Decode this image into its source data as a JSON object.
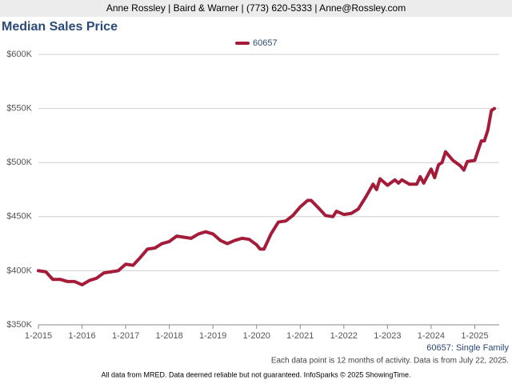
{
  "header": "Anne Rossley | Baird & Warner | (773) 620-5333 | Anne@Rossley.com",
  "chart_data": {
    "type": "line",
    "title": "Median Sales Price",
    "x": [
      2015.0,
      2015.17,
      2015.33,
      2015.5,
      2015.67,
      2015.83,
      2016.0,
      2016.17,
      2016.33,
      2016.5,
      2016.67,
      2016.83,
      2017.0,
      2017.17,
      2017.33,
      2017.5,
      2017.67,
      2017.83,
      2018.0,
      2018.17,
      2018.33,
      2018.5,
      2018.67,
      2018.83,
      2019.0,
      2019.17,
      2019.33,
      2019.5,
      2019.67,
      2019.83,
      2020.0,
      2020.08,
      2020.17,
      2020.33,
      2020.5,
      2020.67,
      2020.83,
      2021.0,
      2021.17,
      2021.25,
      2021.42,
      2021.58,
      2021.75,
      2021.83,
      2022.0,
      2022.17,
      2022.33,
      2022.5,
      2022.67,
      2022.75,
      2022.83,
      2023.0,
      2023.17,
      2023.25,
      2023.33,
      2023.5,
      2023.67,
      2023.75,
      2023.83,
      2024.0,
      2024.08,
      2024.17,
      2024.25,
      2024.33,
      2024.5,
      2024.67,
      2024.75,
      2024.83,
      2025.0,
      2025.15,
      2025.22,
      2025.3,
      2025.38,
      2025.45
    ],
    "series": [
      {
        "name": "60657",
        "color": "#a51c3a",
        "values": [
          400,
          399,
          392,
          392,
          390,
          390,
          387,
          391,
          393,
          398,
          399,
          400,
          406,
          405,
          412,
          420,
          421,
          425,
          427,
          432,
          431,
          430,
          434,
          436,
          434,
          428,
          425,
          428,
          430,
          429,
          424,
          420,
          420,
          434,
          445,
          446,
          451,
          459,
          465,
          465,
          458,
          451,
          450,
          455,
          452,
          453,
          457,
          468,
          480,
          475,
          485,
          479,
          484,
          481,
          484,
          480,
          480,
          487,
          481,
          494,
          486,
          498,
          500,
          510,
          502,
          497,
          493,
          501,
          502,
          520,
          520,
          530,
          548,
          550
        ]
      }
    ],
    "ylim": [
      350,
      600
    ],
    "yticks": [
      {
        "value": 350,
        "label": "$350K"
      },
      {
        "value": 400,
        "label": "$400K"
      },
      {
        "value": 450,
        "label": "$450K"
      },
      {
        "value": 500,
        "label": "$500K"
      },
      {
        "value": 550,
        "label": "$550K"
      },
      {
        "value": 600,
        "label": "$600K"
      }
    ],
    "xlim": [
      2015,
      2025.45
    ],
    "xticks": [
      {
        "value": 2015,
        "label": "1-2015"
      },
      {
        "value": 2016,
        "label": "1-2016"
      },
      {
        "value": 2017,
        "label": "1-2017"
      },
      {
        "value": 2018,
        "label": "1-2018"
      },
      {
        "value": 2019,
        "label": "1-2019"
      },
      {
        "value": 2020,
        "label": "1-2020"
      },
      {
        "value": 2021,
        "label": "1-2021"
      },
      {
        "value": 2022,
        "label": "1-2022"
      },
      {
        "value": 2023,
        "label": "1-2023"
      },
      {
        "value": 2024,
        "label": "1-2024"
      },
      {
        "value": 2025,
        "label": "1-2025"
      }
    ],
    "grid": true,
    "legend": "top",
    "series_note": "60657: Single Family",
    "note": "Each data point is 12 months of activity. Data is from July 22, 2025."
  },
  "footer": "All data from MRED. Data deemed reliable but not guaranteed. InfoSparks © 2025 ShowingTime."
}
